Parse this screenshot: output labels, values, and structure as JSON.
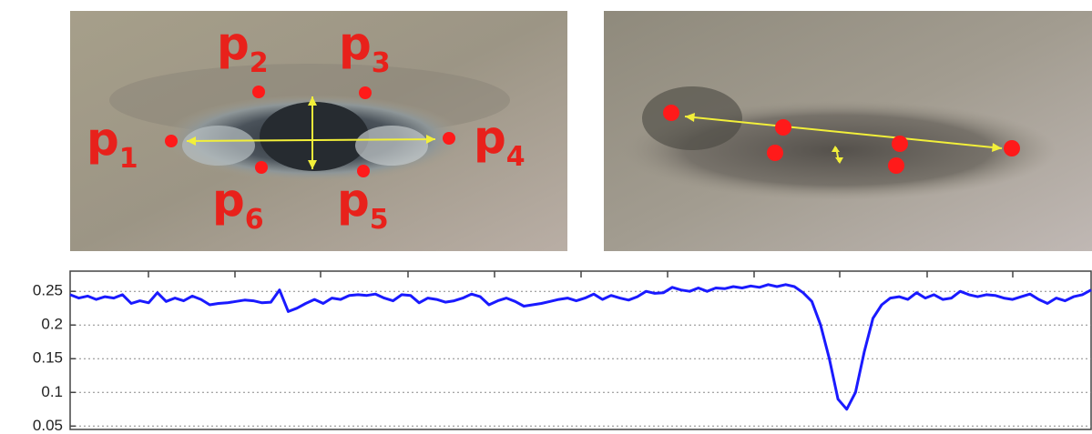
{
  "eye_labels": [
    {
      "text": "p",
      "sub": "1"
    },
    {
      "text": "p",
      "sub": "2"
    },
    {
      "text": "p",
      "sub": "3"
    },
    {
      "text": "p",
      "sub": "4"
    },
    {
      "text": "p",
      "sub": "5"
    },
    {
      "text": "p",
      "sub": "6"
    }
  ],
  "chart_data": {
    "type": "line",
    "color": "#1a1aff",
    "values": [
      0.245,
      0.24,
      0.243,
      0.238,
      0.242,
      0.24,
      0.245,
      0.232,
      0.236,
      0.233,
      0.248,
      0.235,
      0.24,
      0.236,
      0.243,
      0.238,
      0.23,
      0.232,
      0.233,
      0.235,
      0.237,
      0.236,
      0.233,
      0.234,
      0.252,
      0.22,
      0.225,
      0.232,
      0.238,
      0.232,
      0.24,
      0.238,
      0.244,
      0.245,
      0.244,
      0.246,
      0.24,
      0.236,
      0.245,
      0.244,
      0.233,
      0.24,
      0.238,
      0.234,
      0.236,
      0.24,
      0.246,
      0.242,
      0.23,
      0.236,
      0.24,
      0.235,
      0.228,
      0.23,
      0.232,
      0.235,
      0.238,
      0.24,
      0.236,
      0.24,
      0.246,
      0.238,
      0.244,
      0.24,
      0.237,
      0.242,
      0.25,
      0.247,
      0.248,
      0.256,
      0.252,
      0.25,
      0.255,
      0.25,
      0.255,
      0.254,
      0.257,
      0.255,
      0.258,
      0.256,
      0.26,
      0.257,
      0.26,
      0.257,
      0.248,
      0.235,
      0.2,
      0.15,
      0.09,
      0.075,
      0.1,
      0.16,
      0.21,
      0.23,
      0.24,
      0.242,
      0.238,
      0.248,
      0.24,
      0.245,
      0.238,
      0.24,
      0.25,
      0.245,
      0.242,
      0.245,
      0.244,
      0.24,
      0.238,
      0.242,
      0.246,
      0.238,
      0.232,
      0.24,
      0.236,
      0.242,
      0.245,
      0.252
    ],
    "ylim": [
      0.045,
      0.28
    ],
    "yticks": [
      0.05,
      0.1,
      0.15,
      0.2,
      0.25
    ],
    "grid": true
  }
}
